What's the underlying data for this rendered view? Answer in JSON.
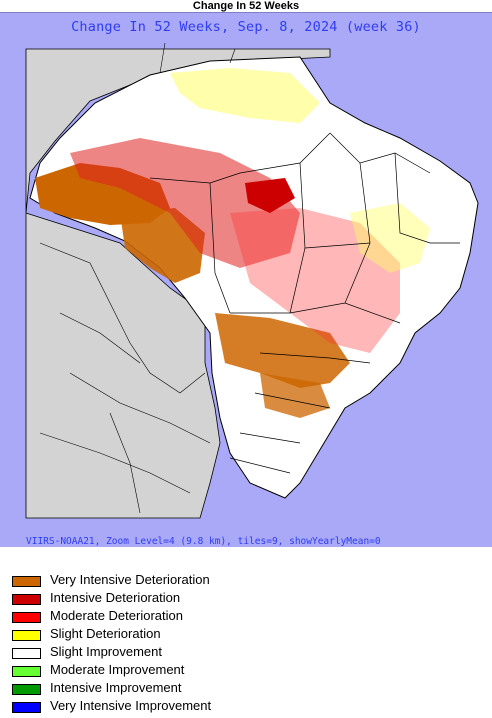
{
  "top_title": "Change In 52 Weeks",
  "map": {
    "heading": "Change In 52 Weeks, Sep. 8, 2024 (week 36)",
    "footer": "VIIRS-NOAA21, Zoom Level=4 (9.8 km), tiles=9, showYearlyMean=0",
    "colors": {
      "ocean": "#a9a9f7",
      "land_outside": "#d3d3d3",
      "land_inside": "#ffffff",
      "border": "#000000"
    }
  },
  "legend": {
    "items": [
      {
        "label": "Very Intensive Deterioration",
        "color": "#cc6600"
      },
      {
        "label": "Intensive Deterioration",
        "color": "#cc0000"
      },
      {
        "label": "Moderate Deterioration",
        "color": "#ff0000"
      },
      {
        "label": "Slight Deterioration",
        "color": "#ffff00"
      },
      {
        "label": "Slight Improvement",
        "color": "#ffffff"
      },
      {
        "label": "Moderate Improvement",
        "color": "#66ff33"
      },
      {
        "label": "Intensive Improvement",
        "color": "#009900"
      },
      {
        "label": "Very Intensive Improvement",
        "color": "#0000ff"
      }
    ]
  }
}
